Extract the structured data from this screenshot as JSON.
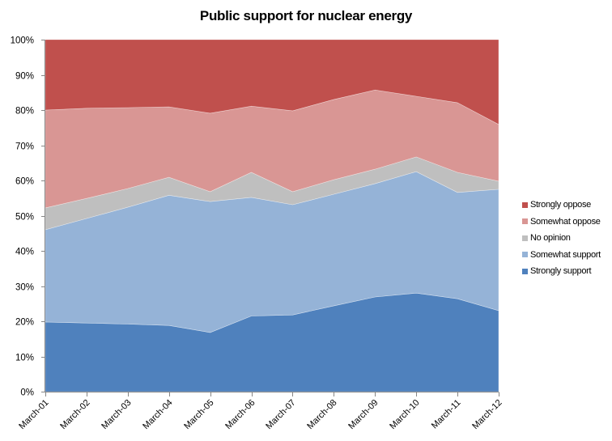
{
  "chart_data": {
    "type": "area",
    "stacked": "percent",
    "title": "Public support for nuclear energy",
    "xlabel": "",
    "ylabel": "",
    "ylim": [
      0,
      100
    ],
    "y_ticks": [
      "0%",
      "10%",
      "20%",
      "30%",
      "40%",
      "50%",
      "60%",
      "70%",
      "80%",
      "90%",
      "100%"
    ],
    "categories": [
      "March-01",
      "March-02",
      "March-03",
      "March-04",
      "March-05",
      "March-06",
      "March-07",
      "March-08",
      "March-09",
      "March-10",
      "March-11",
      "March-12"
    ],
    "series": [
      {
        "name": "Strongly support",
        "color": "#4F81BD",
        "values": [
          19.8,
          19.5,
          19.2,
          18.8,
          16.8,
          21.5,
          21.8,
          24.4,
          26.9,
          28.0,
          26.4,
          23.0
        ]
      },
      {
        "name": "Somewhat support",
        "color": "#95B3D7",
        "values": [
          26.2,
          29.7,
          33.2,
          37.0,
          37.2,
          33.7,
          31.3,
          31.7,
          32.2,
          34.5,
          30.2,
          34.5
        ]
      },
      {
        "name": "No opinion",
        "color": "#BFBFBF",
        "values": [
          6.2,
          5.7,
          5.3,
          5.1,
          2.8,
          7.1,
          3.7,
          4.1,
          4.1,
          4.2,
          5.7,
          2.3
        ]
      },
      {
        "name": "Somewhat oppose",
        "color": "#D99694",
        "values": [
          27.8,
          25.6,
          23.0,
          20.0,
          22.3,
          18.8,
          23.0,
          22.8,
          22.5,
          17.2,
          19.8,
          16.1
        ]
      },
      {
        "name": "Strongly oppose",
        "color": "#C0504D",
        "values": [
          20.0,
          19.5,
          19.3,
          19.1,
          20.9,
          18.9,
          20.2,
          17.0,
          14.3,
          16.1,
          17.9,
          24.1
        ]
      }
    ],
    "legend_position": "right",
    "legend_order": [
      "Strongly oppose",
      "Somewhat oppose",
      "No opinion",
      "Somewhat support",
      "Strongly support"
    ],
    "grid": false
  }
}
